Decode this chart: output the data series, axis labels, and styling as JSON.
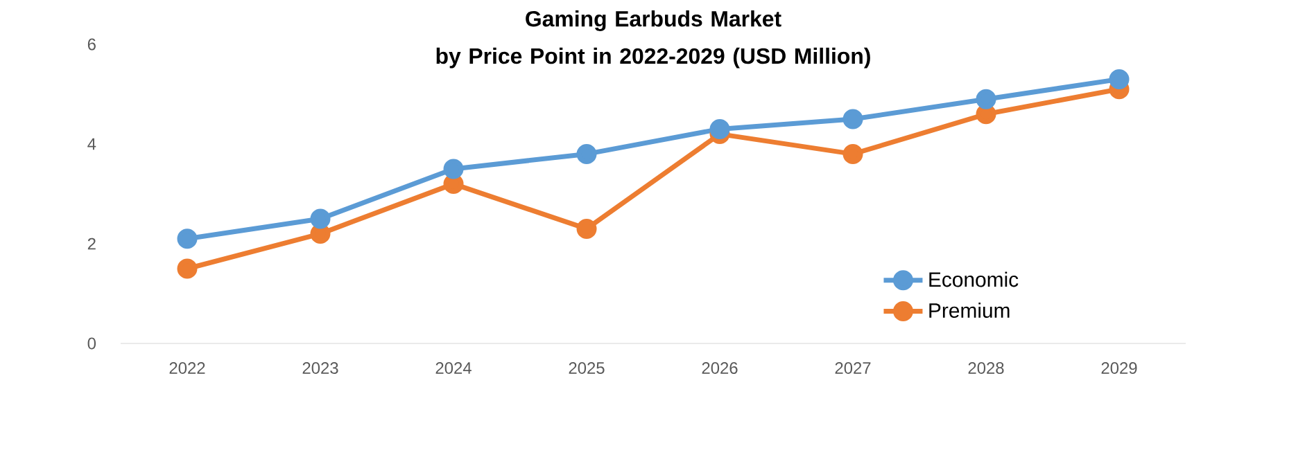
{
  "chart_data": {
    "type": "line",
    "title": "Gaming Earbuds Market\nby Price Point in 2022-2029 (USD Million)",
    "categories": [
      "2022",
      "2023",
      "2024",
      "2025",
      "2026",
      "2027",
      "2028",
      "2029"
    ],
    "series": [
      {
        "name": "Economic",
        "color": "#5b9bd5",
        "values": [
          2.1,
          2.5,
          3.5,
          3.8,
          4.3,
          4.5,
          4.9,
          5.3
        ]
      },
      {
        "name": "Premium",
        "color": "#ed7d31",
        "values": [
          1.5,
          2.2,
          3.2,
          2.3,
          4.2,
          3.8,
          4.6,
          5.1
        ]
      }
    ],
    "ylim": [
      0,
      6
    ],
    "yticks": [
      0,
      2,
      4,
      6
    ],
    "grid": false,
    "legend": "bottom right",
    "marker": "circle",
    "line_style": "solid"
  }
}
